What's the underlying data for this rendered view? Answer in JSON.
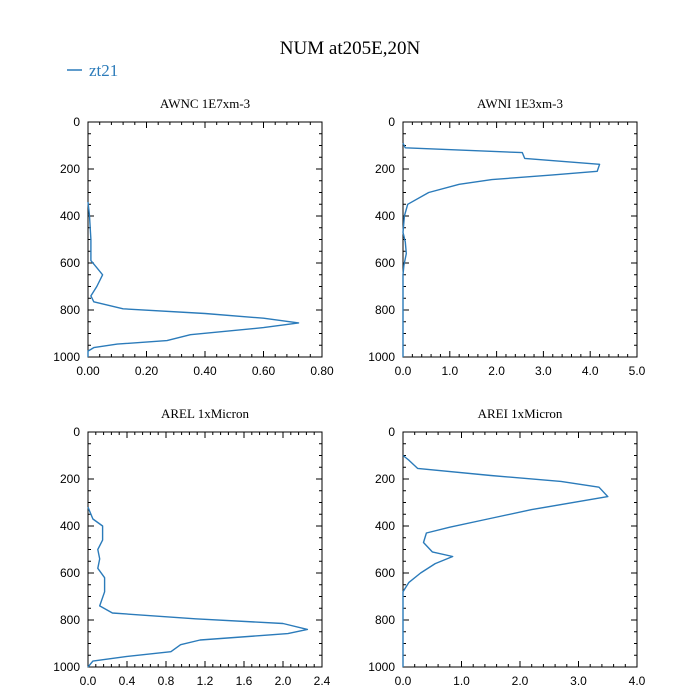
{
  "figure": {
    "title": "NUM at205E,20N",
    "legend": {
      "label": "zt21",
      "color": "#2b7bba",
      "placement": "top-left"
    }
  },
  "chart_data": [
    {
      "type": "line",
      "title": "AWNC  1E7xm-3",
      "xlabel": "",
      "ylabel": "",
      "xlim": [
        0,
        0.8
      ],
      "ylim": [
        1000,
        0
      ],
      "y_inverted": true,
      "xticks": [
        0,
        0.2,
        0.4,
        0.6,
        0.8
      ],
      "xtick_labels": [
        "0.00",
        "0.20",
        "0.40",
        "0.60",
        "0.80"
      ],
      "yticks": [
        0,
        200,
        400,
        600,
        800,
        1000
      ],
      "ytick_labels": [
        "0",
        "200",
        "400",
        "600",
        "800",
        "1000"
      ],
      "series": [
        {
          "name": "zt21",
          "color": "#2b7bba",
          "points": [
            [
              0.0,
              340
            ],
            [
              0.005,
              400
            ],
            [
              0.01,
              500
            ],
            [
              0.01,
              590
            ],
            [
              0.03,
              620
            ],
            [
              0.05,
              650
            ],
            [
              0.03,
              700
            ],
            [
              0.01,
              740
            ],
            [
              0.02,
              765
            ],
            [
              0.12,
              795
            ],
            [
              0.4,
              815
            ],
            [
              0.6,
              835
            ],
            [
              0.72,
              855
            ],
            [
              0.6,
              875
            ],
            [
              0.35,
              905
            ],
            [
              0.27,
              930
            ],
            [
              0.1,
              945
            ],
            [
              0.02,
              960
            ],
            [
              0.0,
              975
            ],
            [
              0.0,
              1000
            ]
          ]
        }
      ]
    },
    {
      "type": "line",
      "title": "AWNI  1E3xm-3",
      "xlabel": "",
      "ylabel": "",
      "xlim": [
        0,
        5.0
      ],
      "ylim": [
        1000,
        0
      ],
      "y_inverted": true,
      "xticks": [
        0,
        1,
        2,
        3,
        4,
        5
      ],
      "xtick_labels": [
        "0.0",
        "1.0",
        "2.0",
        "3.0",
        "4.0",
        "5.0"
      ],
      "yticks": [
        0,
        200,
        400,
        600,
        800,
        1000
      ],
      "ytick_labels": [
        "0",
        "200",
        "400",
        "600",
        "800",
        "1000"
      ],
      "series": [
        {
          "name": "zt21",
          "color": "#2b7bba",
          "points": [
            [
              0.0,
              90
            ],
            [
              0.05,
              110
            ],
            [
              2.55,
              130
            ],
            [
              2.6,
              155
            ],
            [
              4.2,
              180
            ],
            [
              4.15,
              210
            ],
            [
              3.2,
              225
            ],
            [
              1.9,
              245
            ],
            [
              1.2,
              265
            ],
            [
              0.55,
              300
            ],
            [
              0.1,
              350
            ],
            [
              0.03,
              400
            ],
            [
              0.0,
              470
            ],
            [
              0.05,
              510
            ],
            [
              0.07,
              560
            ],
            [
              0.02,
              610
            ],
            [
              0.0,
              650
            ],
            [
              0.0,
              1000
            ]
          ]
        }
      ]
    },
    {
      "type": "line",
      "title": "AREL  1xMicron",
      "xlabel": "",
      "ylabel": "",
      "xlim": [
        0,
        2.4
      ],
      "ylim": [
        1000,
        0
      ],
      "y_inverted": true,
      "xticks": [
        0,
        0.4,
        0.8,
        1.2,
        1.6,
        2.0,
        2.4
      ],
      "xtick_labels": [
        "0.0",
        "0.4",
        "0.8",
        "1.2",
        "1.6",
        "2.0",
        "2.4"
      ],
      "yticks": [
        0,
        200,
        400,
        600,
        800,
        1000
      ],
      "ytick_labels": [
        "0",
        "200",
        "400",
        "600",
        "800",
        "1000"
      ],
      "series": [
        {
          "name": "zt21",
          "color": "#2b7bba",
          "points": [
            [
              0.0,
              320
            ],
            [
              0.05,
              370
            ],
            [
              0.15,
              400
            ],
            [
              0.15,
              460
            ],
            [
              0.1,
              500
            ],
            [
              0.12,
              540
            ],
            [
              0.1,
              580
            ],
            [
              0.17,
              620
            ],
            [
              0.17,
              680
            ],
            [
              0.12,
              740
            ],
            [
              0.25,
              770
            ],
            [
              1.1,
              795
            ],
            [
              2.0,
              815
            ],
            [
              2.25,
              840
            ],
            [
              2.05,
              858
            ],
            [
              1.15,
              885
            ],
            [
              0.95,
              905
            ],
            [
              0.85,
              935
            ],
            [
              0.4,
              955
            ],
            [
              0.05,
              975
            ],
            [
              0.0,
              1000
            ]
          ]
        }
      ]
    },
    {
      "type": "line",
      "title": "AREI  1xMicron",
      "xlabel": "",
      "ylabel": "",
      "xlim": [
        0,
        4.0
      ],
      "ylim": [
        1000,
        0
      ],
      "y_inverted": true,
      "xticks": [
        0,
        1,
        2,
        3,
        4
      ],
      "xtick_labels": [
        "0.0",
        "1.0",
        "2.0",
        "3.0",
        "4.0"
      ],
      "yticks": [
        0,
        200,
        400,
        600,
        800,
        1000
      ],
      "ytick_labels": [
        "0",
        "200",
        "400",
        "600",
        "800",
        "1000"
      ],
      "series": [
        {
          "name": "zt21",
          "color": "#2b7bba",
          "points": [
            [
              0.0,
              100
            ],
            [
              0.1,
              120
            ],
            [
              0.25,
              155
            ],
            [
              1.5,
              185
            ],
            [
              2.7,
              210
            ],
            [
              3.35,
              235
            ],
            [
              3.5,
              275
            ],
            [
              2.2,
              330
            ],
            [
              1.45,
              370
            ],
            [
              0.8,
              405
            ],
            [
              0.4,
              430
            ],
            [
              0.35,
              470
            ],
            [
              0.5,
              510
            ],
            [
              0.85,
              530
            ],
            [
              0.55,
              560
            ],
            [
              0.3,
              600
            ],
            [
              0.1,
              640
            ],
            [
              0.0,
              680
            ],
            [
              0.0,
              1000
            ]
          ]
        }
      ]
    }
  ]
}
